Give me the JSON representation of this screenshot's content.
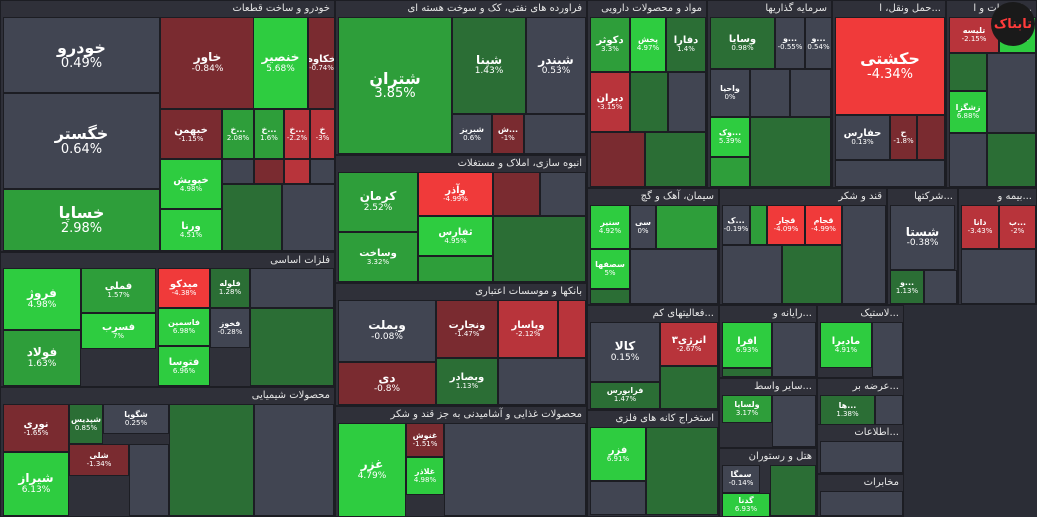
{
  "logo_text": "تابناک",
  "colors": {
    "pos_strong": "#2ecc40",
    "pos": "#2e9e3a",
    "pos_weak": "#2b6e35",
    "neutral": "#414552",
    "neg_weak": "#7a2b30",
    "neg": "#b8343b",
    "neg_strong": "#f03a3a",
    "bg": "#2f3039"
  },
  "chart_data": {
    "type": "treemap",
    "sectors": [
      {
        "name": "خودرو و ساخت قطعات",
        "stocks": [
          {
            "name": "خودرو",
            "change": 0.49
          },
          {
            "name": "خگستر",
            "change": 0.64
          },
          {
            "name": "خساپا",
            "change": 2.98
          },
          {
            "name": "خاور",
            "change": -0.84
          },
          {
            "name": "خنصیر",
            "change": 5.68
          },
          {
            "name": "خکاوه",
            "change": -0.74
          },
          {
            "name": "خبهمن",
            "change": -1.15
          },
          {
            "name": "خ...",
            "change": 2.08
          },
          {
            "name": "خ...",
            "change": 1.6
          },
          {
            "name": "خ...",
            "change": -2.2
          },
          {
            "name": "خ",
            "change": -3.0
          },
          {
            "name": "خپویش",
            "change": 4.98
          },
          {
            "name": "ورنا",
            "change": 4.51
          }
        ]
      },
      {
        "name": "فراورده های نفتی، کک و سوخت هسته ای",
        "stocks": [
          {
            "name": "شتران",
            "change": 3.85
          },
          {
            "name": "شپنا",
            "change": 1.43
          },
          {
            "name": "شبندر",
            "change": 0.53
          },
          {
            "name": "شبریز",
            "change": 0.6
          },
          {
            "name": "ش...",
            "change": -1.0
          }
        ]
      },
      {
        "name": "مواد و محصولات دارویی",
        "stocks": [
          {
            "name": "دکوثر",
            "change": 3.3
          },
          {
            "name": "دفارا",
            "change": 1.4
          },
          {
            "name": "پخش",
            "change": 4.97
          },
          {
            "name": "دبران",
            "change": -3.15
          }
        ]
      },
      {
        "name": "سرمایه گذاریها",
        "stocks": [
          {
            "name": "وسایا",
            "change": 0.98
          },
          {
            "name": "و...",
            "change": -0.55
          },
          {
            "name": "و...",
            "change": 0.54
          },
          {
            "name": "واحیا",
            "change": 0.0
          },
          {
            "name": "وک...",
            "change": 5.39
          }
        ]
      },
      {
        "name": "حمل ونقل، ا...",
        "stocks": [
          {
            "name": "حکشتی",
            "change": -4.34
          },
          {
            "name": "حفارس",
            "change": 0.13
          },
          {
            "name": "ح",
            "change": -1.8
          }
        ]
      },
      {
        "name": "اطلاعات و ا...",
        "stocks": [
          {
            "name": "تلیسه",
            "change": -2.15
          },
          {
            "name": "زنگ",
            "change": 6.98
          },
          {
            "name": "زشگزا",
            "change": 6.88
          }
        ]
      },
      {
        "name": "انبوه سازی، املاک و مستغلات",
        "stocks": [
          {
            "name": "کرمان",
            "change": 2.52
          },
          {
            "name": "وآذر",
            "change": -4.99
          },
          {
            "name": "ثفارس",
            "change": 4.95
          },
          {
            "name": "وساخت",
            "change": 3.32
          }
        ]
      },
      {
        "name": "سیمان، آهک و گچ",
        "stocks": [
          {
            "name": "سنیر",
            "change": 4.92
          },
          {
            "name": "سصفها",
            "change": 5.0
          },
          {
            "name": "سی",
            "change": 0.0
          }
        ]
      },
      {
        "name": "قند و شکر",
        "stocks": [
          {
            "name": "قجام",
            "change": -4.99
          },
          {
            "name": "قچار",
            "change": -4.09
          },
          {
            "name": "ک...",
            "change": -0.19
          }
        ]
      },
      {
        "name": "شرکتها...",
        "stocks": [
          {
            "name": "شستا",
            "change": -0.38
          },
          {
            "name": "و...",
            "change": 1.13
          }
        ]
      },
      {
        "name": "بیمه و...",
        "stocks": [
          {
            "name": "دانا",
            "change": -3.43
          },
          {
            "name": "ب...",
            "change": -2.0
          }
        ]
      },
      {
        "name": "فلزات اساسی",
        "stocks": [
          {
            "name": "فروژ",
            "change": 4.98
          },
          {
            "name": "فملی",
            "change": 1.57
          },
          {
            "name": "میدکو",
            "change": -4.38
          },
          {
            "name": "فلوله",
            "change": 1.28
          },
          {
            "name": "فخوز",
            "change": -0.28
          },
          {
            "name": "فولاد",
            "change": 1.63
          },
          {
            "name": "فسرب",
            "change": 7.0
          },
          {
            "name": "فاسمین",
            "change": 6.98
          },
          {
            "name": "فتوسا",
            "change": 6.96
          }
        ]
      },
      {
        "name": "بانکها و موسسات اعتباری",
        "stocks": [
          {
            "name": "وبملت",
            "change": -0.08
          },
          {
            "name": "ونجارت",
            "change": -1.47
          },
          {
            "name": "وپاسار",
            "change": -2.12
          },
          {
            "name": "دی",
            "change": -0.8
          },
          {
            "name": "وبصادر",
            "change": 1.13
          }
        ]
      },
      {
        "name": "فعالیتهای کم...",
        "stocks": [
          {
            "name": "کالا",
            "change": 0.15
          },
          {
            "name": "انرژی۳",
            "change": -2.67
          },
          {
            "name": "فرابورس",
            "change": 1.47
          }
        ]
      },
      {
        "name": "رایانه و...",
        "stocks": [
          {
            "name": "افرا",
            "change": 6.93
          }
        ]
      },
      {
        "name": "لاستیک...",
        "stocks": [
          {
            "name": "مادیرا",
            "change": 4.91
          }
        ]
      },
      {
        "name": "محصولات شیمیایی",
        "stocks": [
          {
            "name": "شگویا",
            "change": 0.25
          },
          {
            "name": "شپدیس",
            "change": 0.85
          },
          {
            "name": "نوری",
            "change": -1.65
          },
          {
            "name": "شیراز",
            "change": 6.13
          },
          {
            "name": "شلی",
            "change": -1.34
          }
        ]
      },
      {
        "name": "محصولات غذایی و آشامیدنی به جز قند و شکر",
        "stocks": [
          {
            "name": "غزر",
            "change": 4.79
          },
          {
            "name": "غنوش",
            "change": -1.51
          },
          {
            "name": "غلاذر",
            "change": 4.98
          }
        ]
      },
      {
        "name": "استخراج کانه های فلزی",
        "stocks": [
          {
            "name": "فزر",
            "change": 6.91
          }
        ]
      },
      {
        "name": "سایر واسط...",
        "stocks": [
          {
            "name": "ولسایا",
            "change": 3.17
          }
        ]
      },
      {
        "name": "هتل و رستوران",
        "stocks": [
          {
            "name": "سمگا",
            "change": -0.14
          },
          {
            "name": "گدنا",
            "change": 6.93
          }
        ]
      },
      {
        "name": "عرضه بر...",
        "stocks": [
          {
            "name": "ها...",
            "change": 1.38
          }
        ]
      },
      {
        "name": "اطلاعات...",
        "stocks": []
      },
      {
        "name": "مخابرات",
        "stocks": []
      }
    ]
  }
}
